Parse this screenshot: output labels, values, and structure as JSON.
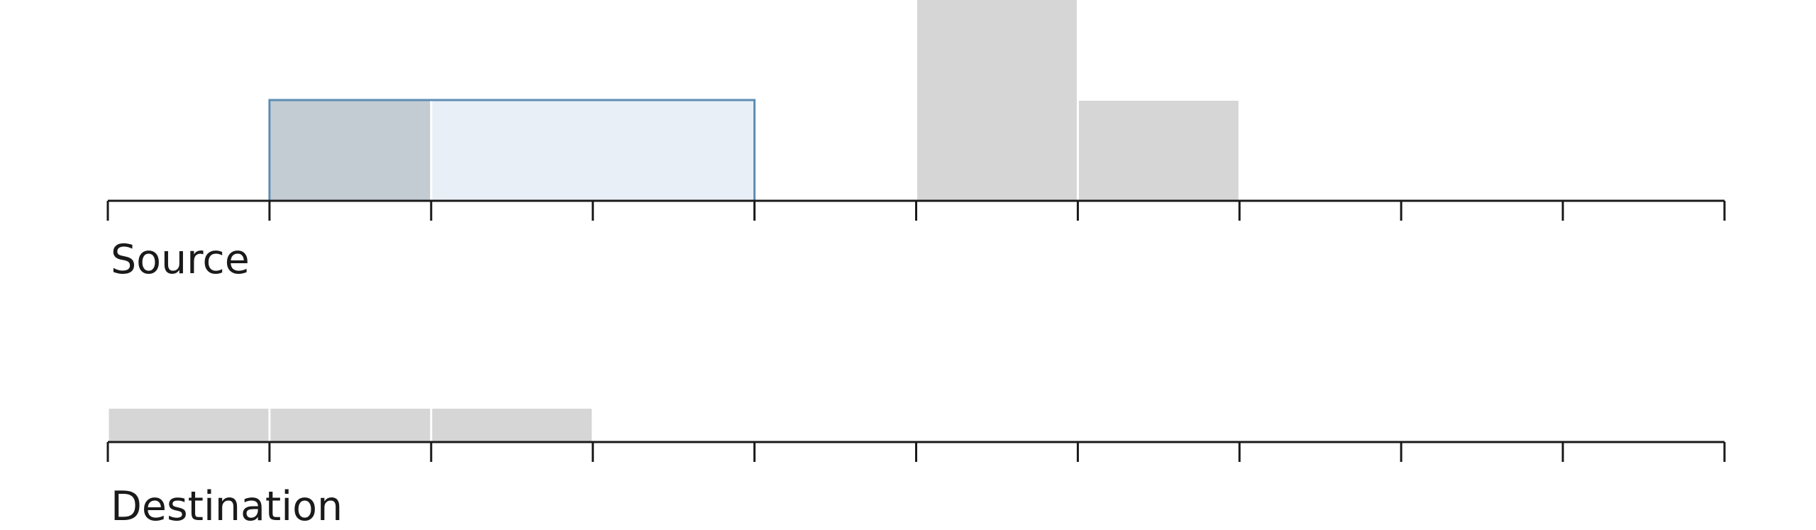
{
  "tracks": {
    "source": {
      "label": "Source",
      "tick_count": 10,
      "blocks": [
        {
          "slot": 1,
          "span": 1,
          "height": 1,
          "style": "selected-dark"
        },
        {
          "slot": 2,
          "span": 2,
          "height": 1,
          "style": "selected-light"
        },
        {
          "slot": 5,
          "span": 1,
          "height": 2,
          "style": "block"
        },
        {
          "slot": 6,
          "span": 1,
          "height": 1,
          "style": "block"
        }
      ],
      "selection": {
        "slot": 1,
        "span": 3,
        "height": 1
      }
    },
    "destination": {
      "label": "Destination",
      "tick_count": 10,
      "blocks": [
        {
          "slot": 0,
          "span": 1,
          "height": 1,
          "style": "block"
        },
        {
          "slot": 1,
          "span": 1,
          "height": 1,
          "style": "block"
        },
        {
          "slot": 2,
          "span": 1,
          "height": 1,
          "style": "block"
        }
      ]
    }
  },
  "colors": {
    "block": "#d6d6d6",
    "selected_dark": "#c3cbd3",
    "selected_light": "#e8eff6",
    "selection_outline": "#5d8db3",
    "axis": "#1a1a1a"
  }
}
